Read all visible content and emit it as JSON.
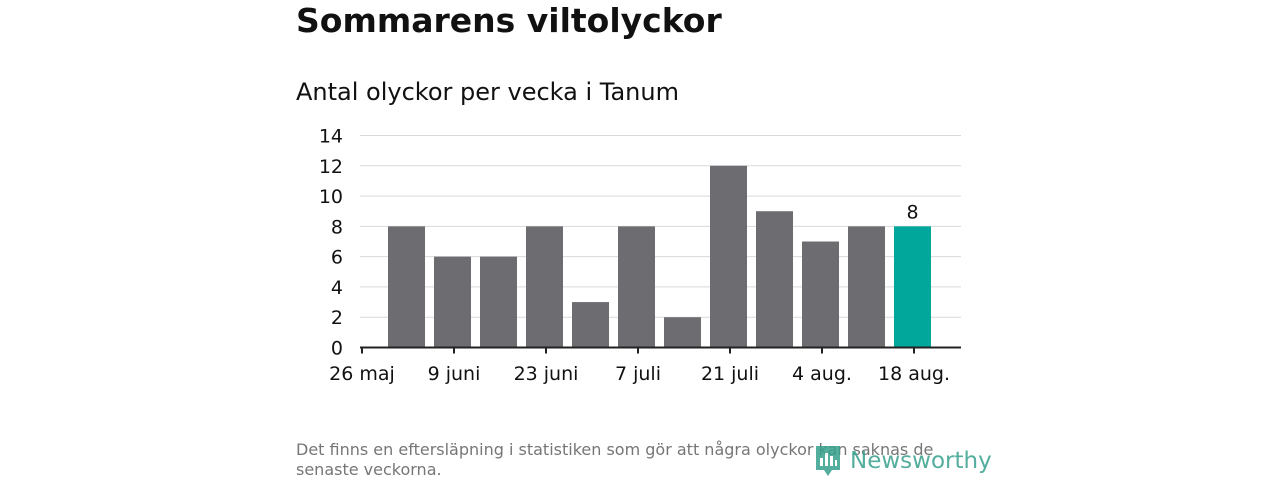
{
  "title": "Sommarens viltolyckor",
  "footnote": "Det finns en eftersläpning i statistiken som gör att några olyckor kan saknas de senaste veckorna.",
  "logo": {
    "text": "Newsworthy",
    "icon": "newsworthy-chart-icon",
    "color": "#37a08d"
  },
  "colors": {
    "bar": "#6d6c71",
    "highlight": "#00a79a",
    "grid": "#d9d9d9",
    "axis": "#222222"
  },
  "chart_data": {
    "type": "bar",
    "title": "Antal olyckor per vecka i Tanum",
    "xlabel": "",
    "ylabel": "",
    "ylim": [
      0,
      14
    ],
    "yticks": [
      0,
      2,
      4,
      6,
      8,
      10,
      12,
      14
    ],
    "grid": true,
    "xtick_labels": [
      "26 maj",
      "9 juni",
      "23 juni",
      "7 juli",
      "21 juli",
      "4 aug.",
      "18 aug."
    ],
    "values": [
      8,
      6,
      6,
      8,
      3,
      8,
      2,
      12,
      9,
      7,
      8,
      8
    ],
    "highlight_index": 11,
    "data_labels": [
      {
        "index": 11,
        "text": "8"
      }
    ]
  }
}
